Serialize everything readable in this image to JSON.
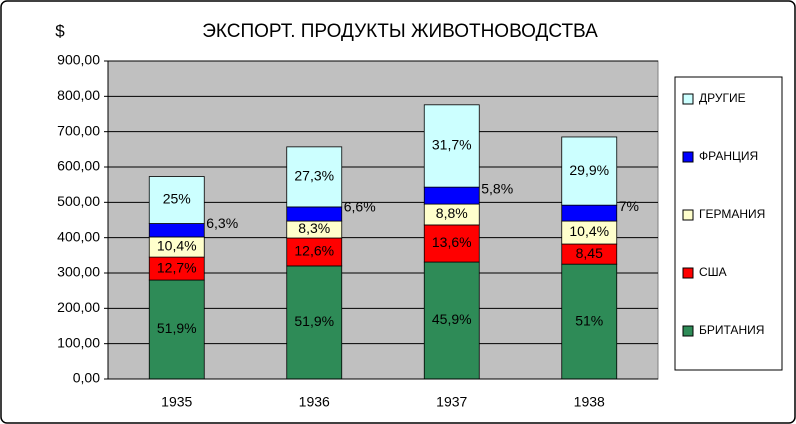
{
  "chart_data": {
    "type": "stacked_bar",
    "title": "ЭКСПОРТ. ПРОДУКТЫ ЖИВОТНОВОДСТВА",
    "y_label": "$",
    "categories": [
      "1935",
      "1936",
      "1937",
      "1938"
    ],
    "series": [
      {
        "name": "БРИТАНИЯ",
        "color": "#2e8b57",
        "values": [
          280,
          320,
          331,
          325
        ],
        "labels": [
          "51,9%",
          "51,9%",
          "45,9%",
          "51%"
        ]
      },
      {
        "name": "США",
        "color": "#ff0000",
        "values": [
          65,
          79,
          105,
          57
        ],
        "labels": [
          "12,7%",
          "12,6%",
          "13,6%",
          "8,45"
        ]
      },
      {
        "name": "ГЕРМАНИЯ",
        "color": "#ffffcc",
        "values": [
          57,
          48,
          59,
          65
        ],
        "labels": [
          "10,4%",
          "8,3%",
          "8,8%",
          "10,4%"
        ]
      },
      {
        "name": "ФРАНЦИЯ",
        "color": "#0000ff",
        "values": [
          38,
          40,
          48,
          45
        ],
        "labels": [
          "6,3%",
          "6,6%",
          "5,8%",
          "7%"
        ]
      },
      {
        "name": "ДРУГИЕ",
        "color": "#ccffff",
        "values": [
          133,
          170,
          233,
          193
        ],
        "labels": [
          "25%",
          "27,3%",
          "31,7%",
          "29,9%"
        ]
      }
    ],
    "ylim": [
      0,
      900
    ],
    "yticks": [
      {
        "value": 0,
        "label": "0,00"
      },
      {
        "value": 100,
        "label": "100,00"
      },
      {
        "value": 200,
        "label": "200,00"
      },
      {
        "value": 300,
        "label": "300,00"
      },
      {
        "value": 400,
        "label": "400,00"
      },
      {
        "value": 500,
        "label": "500,00"
      },
      {
        "value": 600,
        "label": "600,00"
      },
      {
        "value": 700,
        "label": "700,00"
      },
      {
        "value": 800,
        "label": "800,00"
      },
      {
        "value": 900,
        "label": "900,00"
      }
    ],
    "grid": true
  }
}
